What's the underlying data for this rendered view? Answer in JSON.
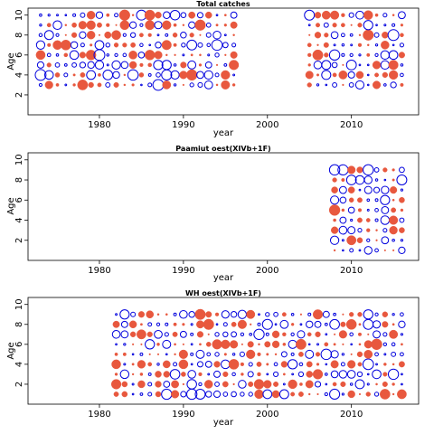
{
  "colors": {
    "positive": "#e8583e",
    "negative": "#0000dd",
    "axis": "#000000"
  },
  "chart_data": [
    {
      "type": "scatter",
      "style": "bubble-residuals",
      "title": "Total catches",
      "xlabel": "year",
      "ylabel": "Age",
      "xlim": [
        1971.5,
        2018
      ],
      "ylim": [
        0,
        10.7
      ],
      "xticks": [
        1980,
        1990,
        2000,
        2010
      ],
      "yticks": [
        2,
        4,
        6,
        8,
        10
      ],
      "ages": [
        3,
        4,
        5,
        6,
        7,
        8,
        9,
        10
      ],
      "year_ranges": [
        [
          1973,
          1996
        ],
        [
          2005,
          2016
        ]
      ]
    },
    {
      "type": "scatter",
      "style": "bubble-residuals",
      "title": "Paamiut   oest(XIVb+1F)",
      "xlabel": "year",
      "ylabel": "Age",
      "xlim": [
        1971.5,
        2018
      ],
      "ylim": [
        0,
        10.7
      ],
      "xticks": [
        1980,
        1990,
        2000,
        2010
      ],
      "yticks": [
        2,
        4,
        6,
        8,
        10
      ],
      "ages": [
        1,
        2,
        3,
        4,
        5,
        6,
        7,
        8,
        9
      ],
      "year_ranges": [
        [
          2008,
          2016
        ]
      ]
    },
    {
      "type": "scatter",
      "style": "bubble-residuals",
      "title": "WH   oest(XIVb+1F)",
      "xlabel": "year",
      "ylabel": "Age",
      "xlim": [
        1971.5,
        2018
      ],
      "ylim": [
        0,
        10.7
      ],
      "xticks": [
        1980,
        1990,
        2000,
        2010
      ],
      "yticks": [
        2,
        4,
        6,
        8,
        10
      ],
      "ages": [
        1,
        2,
        3,
        4,
        5,
        6,
        7,
        8,
        9
      ],
      "year_ranges": [
        [
          1982,
          2016
        ]
      ]
    }
  ]
}
